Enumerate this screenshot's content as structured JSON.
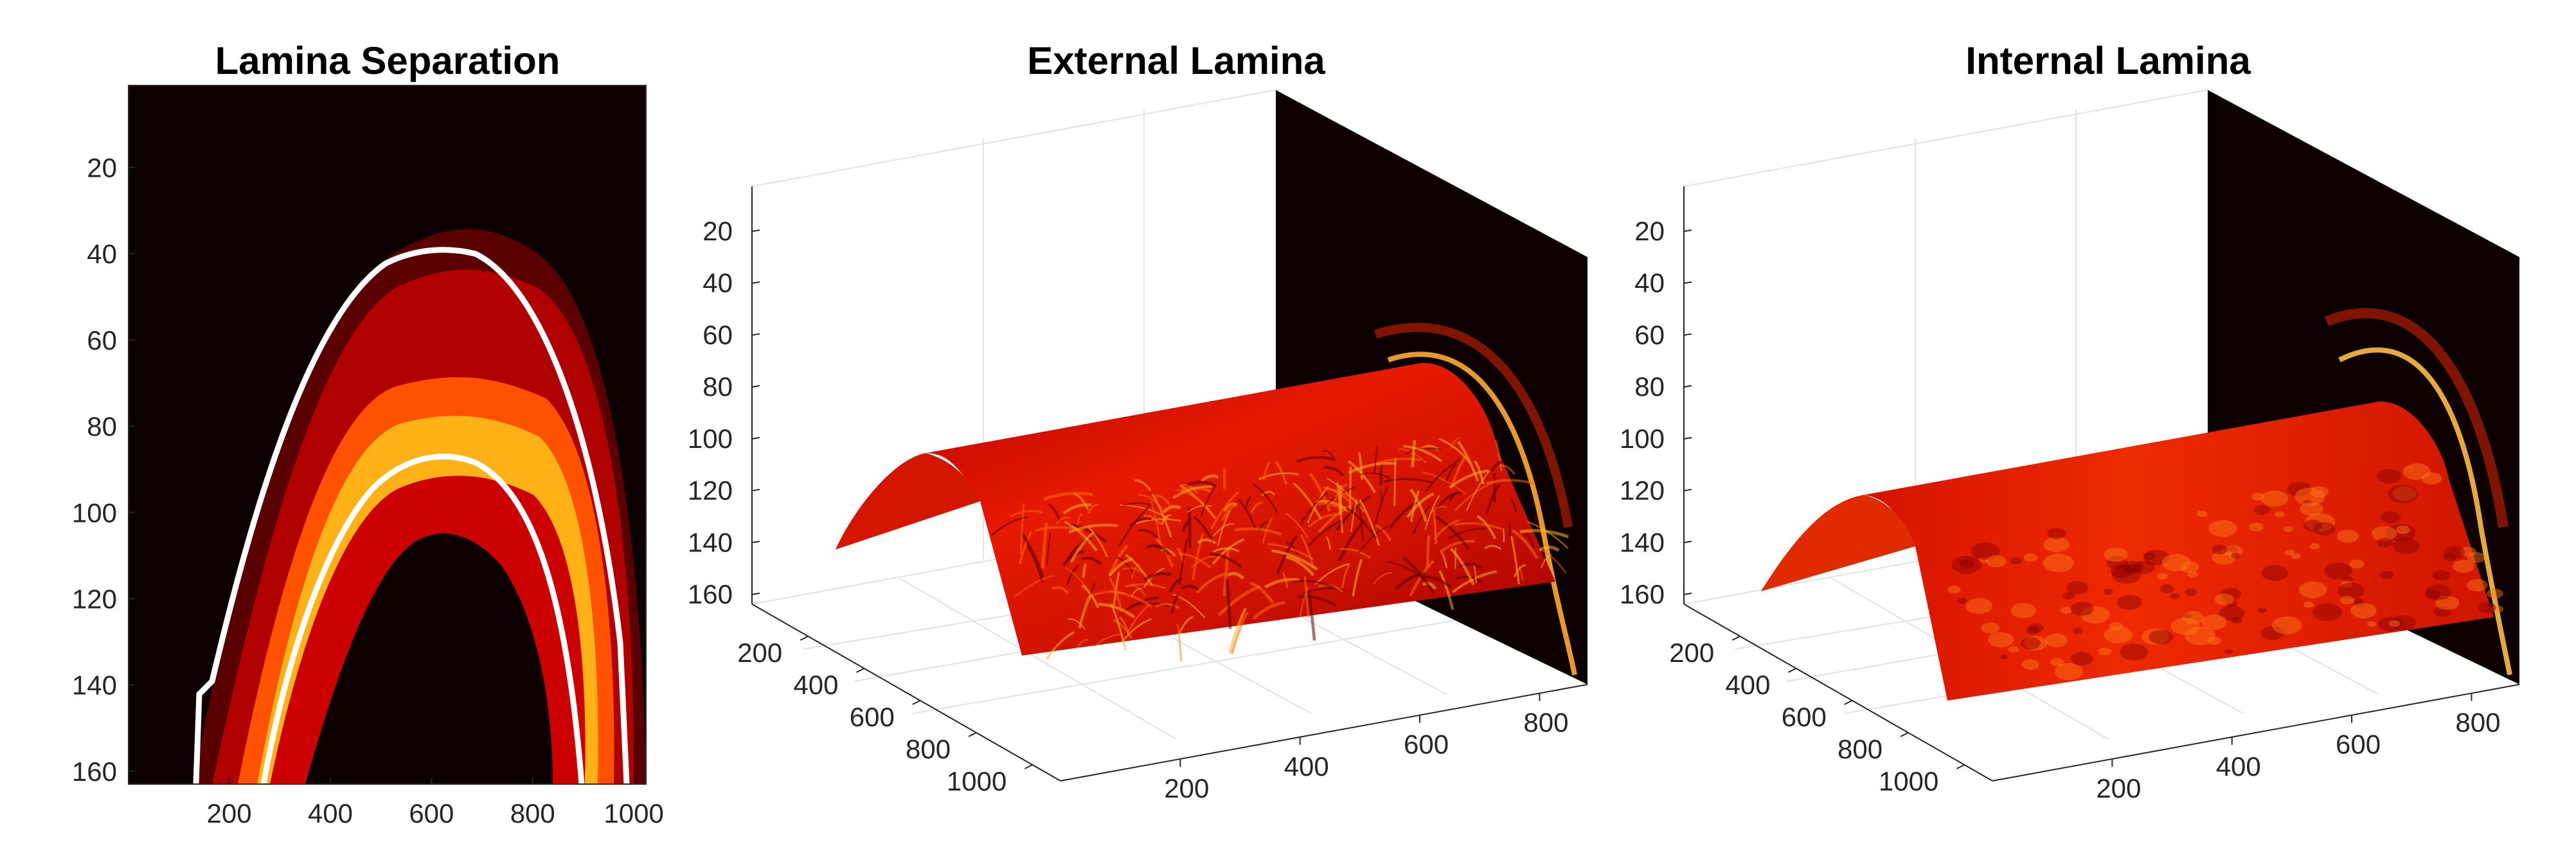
{
  "chart_data": [
    {
      "type": "heatmap",
      "title": "Lamina Separation",
      "xlabel": "",
      "ylabel": "",
      "xlim": [
        1,
        1024
      ],
      "ylim": [
        1,
        163
      ],
      "y_reversed": true,
      "xticks": [
        200,
        400,
        600,
        800,
        1000
      ],
      "yticks": [
        20,
        40,
        60,
        80,
        100,
        120,
        140,
        160
      ],
      "colormap": "hot",
      "outer_boundary": [
        [
          130,
          163
        ],
        [
          150,
          140
        ],
        [
          200,
          110
        ],
        [
          300,
          70
        ],
        [
          400,
          48
        ],
        [
          480,
          40
        ],
        [
          540,
          40
        ],
        [
          600,
          42
        ],
        [
          700,
          58
        ],
        [
          800,
          85
        ],
        [
          880,
          115
        ],
        [
          940,
          150
        ],
        [
          960,
          163
        ]
      ],
      "inner_boundary": [
        [
          270,
          163
        ],
        [
          330,
          140
        ],
        [
          400,
          112
        ],
        [
          470,
          95
        ],
        [
          520,
          88
        ],
        [
          560,
          88
        ],
        [
          620,
          92
        ],
        [
          700,
          105
        ],
        [
          800,
          125
        ],
        [
          880,
          148
        ],
        [
          910,
          163
        ]
      ]
    },
    {
      "type": "surface3d",
      "title": "External Lamina",
      "xlabel": "",
      "ylabel": "",
      "zlabel": "",
      "xticks": [
        200,
        400,
        600,
        800
      ],
      "yticks": [
        200,
        400,
        600,
        800,
        1000
      ],
      "zticks": [
        20,
        40,
        60,
        80,
        100,
        120,
        140,
        160
      ],
      "z_reversed": true,
      "colormap": "hot",
      "texture": "fibrous"
    },
    {
      "type": "surface3d",
      "title": "Internal Lamina",
      "xlabel": "",
      "ylabel": "",
      "zlabel": "",
      "xticks": [
        200,
        400,
        600,
        800
      ],
      "yticks": [
        200,
        400,
        600,
        800,
        1000
      ],
      "zticks": [
        20,
        40,
        60,
        80,
        100,
        120,
        140,
        160
      ],
      "z_reversed": true,
      "colormap": "hot",
      "texture": "smooth"
    }
  ],
  "colors": {
    "background": "#ffffff",
    "axis": "#262626",
    "grid": "#e2e2e2",
    "hot_dark": "#0d0000",
    "hot_red": "#cc0000",
    "hot_orange": "#ff6a00",
    "hot_yellow": "#ffee33",
    "boundary": "#ffffff"
  }
}
